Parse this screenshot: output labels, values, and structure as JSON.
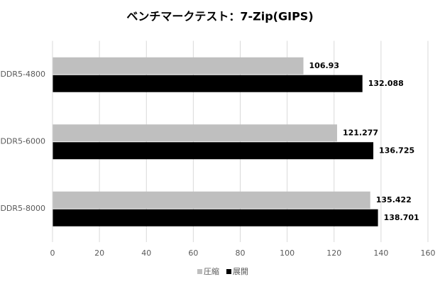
{
  "chart_data": {
    "type": "hbar",
    "title": "ベンチマークテスト：7-Zip(GIPS)",
    "categories": [
      "DDR5-4800",
      "DDR5-6000",
      "DDR5-8000"
    ],
    "series": [
      {
        "name": "圧縮",
        "color": "#bfbfbf",
        "values": [
          106.93,
          121.277,
          135.422
        ]
      },
      {
        "name": "展開",
        "color": "#000000",
        "values": [
          132.088,
          136.725,
          138.701
        ]
      }
    ],
    "xlim": [
      0,
      160
    ],
    "xticks": [
      0,
      20,
      40,
      60,
      80,
      100,
      120,
      140,
      160
    ],
    "grid": true,
    "legend": "bottom"
  }
}
